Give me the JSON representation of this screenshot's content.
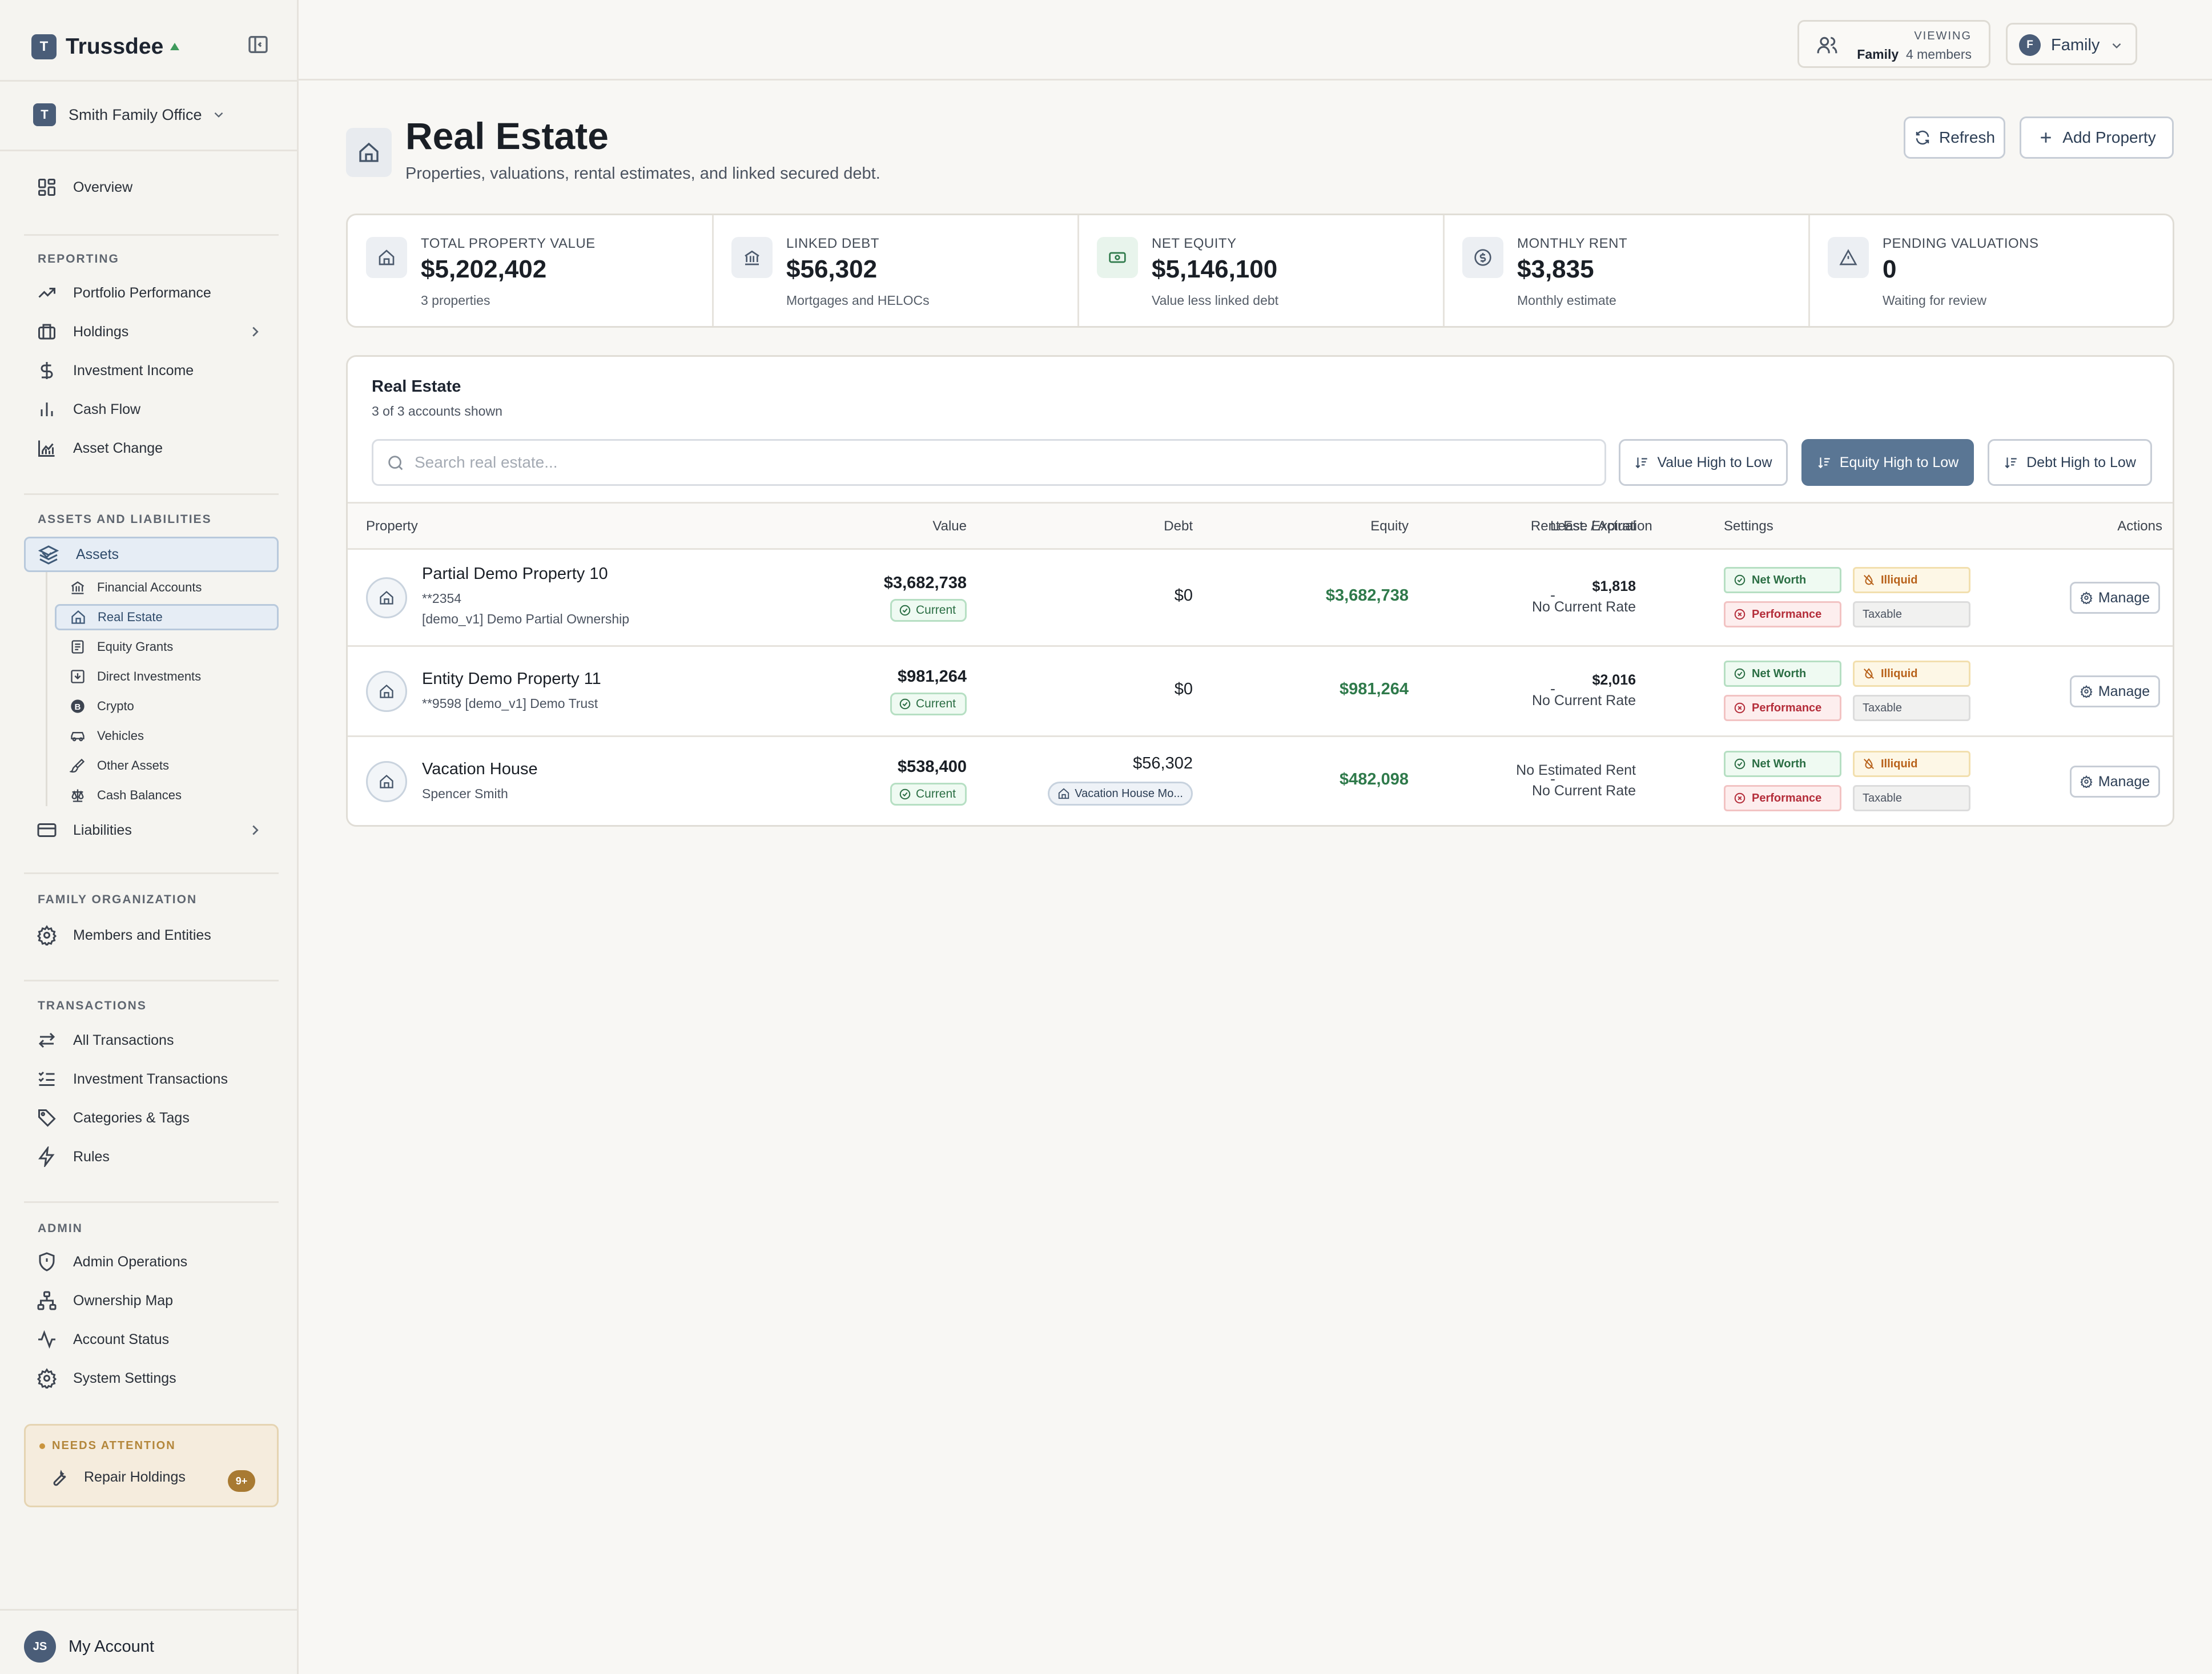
{
  "app": {
    "brand": "Trussdee",
    "brand_initial": "T",
    "org": {
      "initial": "T",
      "name": "Smith Family Office"
    }
  },
  "sidebar": {
    "overview": "Overview",
    "reporting_label": "REPORTING",
    "reporting": [
      "Portfolio Performance",
      "Holdings",
      "Investment Income",
      "Cash Flow",
      "Asset Change"
    ],
    "al_label": "ASSETS AND LIABILITIES",
    "assets": "Assets",
    "asset_subs": [
      "Financial Accounts",
      "Real Estate",
      "Equity Grants",
      "Direct Investments",
      "Crypto",
      "Vehicles",
      "Other Assets",
      "Cash Balances"
    ],
    "liabilities": "Liabilities",
    "family_label": "FAMILY ORGANIZATION",
    "family": [
      "Members and Entities"
    ],
    "tx_label": "TRANSACTIONS",
    "transactions": [
      "All Transactions",
      "Investment Transactions",
      "Categories & Tags",
      "Rules"
    ],
    "admin_label": "ADMIN",
    "admin": [
      "Admin Operations",
      "Ownership Map",
      "Account Status",
      "System Settings"
    ],
    "attention": {
      "label": "NEEDS ATTENTION",
      "item": "Repair Holdings",
      "badge": "9+"
    },
    "account": {
      "initials": "JS",
      "name": "My Account"
    }
  },
  "topbar": {
    "viewing_label": "VIEWING",
    "viewing_name": "Family",
    "viewing_members": "4 members",
    "selector_initial": "F",
    "selector_label": "Family"
  },
  "page": {
    "title": "Real Estate",
    "subtitle": "Properties, valuations, rental estimates, and linked secured debt.",
    "refresh": "Refresh",
    "add": "Add Property"
  },
  "stats": [
    {
      "label": "TOTAL PROPERTY VALUE",
      "value": "$5,202,402",
      "sub": "3 properties",
      "icon": "home-icon"
    },
    {
      "label": "LINKED DEBT",
      "value": "$56,302",
      "sub": "Mortgages and HELOCs",
      "icon": "bank-icon"
    },
    {
      "label": "NET EQUITY",
      "value": "$5,146,100",
      "sub": "Value less linked debt",
      "icon": "banknote-icon"
    },
    {
      "label": "MONTHLY RENT",
      "value": "$3,835",
      "sub": "Monthly estimate",
      "icon": "dollar-circle-icon"
    },
    {
      "label": "PENDING VALUATIONS",
      "value": "0",
      "sub": "Waiting for review",
      "icon": "alert-triangle-icon"
    }
  ],
  "table": {
    "title": "Real Estate",
    "subtitle": "3 of 3 accounts shown",
    "search_placeholder": "Search real estate...",
    "sorts": [
      "Value High to Low",
      "Equity High to Low",
      "Debt High to Low"
    ],
    "active_sort": "Equity High to Low",
    "columns": [
      "Property",
      "Value",
      "Debt",
      "Equity",
      "Rent Est. / Actual",
      "Lease Expiration",
      "Settings",
      "Actions"
    ],
    "tags": {
      "net_worth": "Net Worth",
      "illiquid": "Illiquid",
      "performance": "Performance",
      "taxable": "Taxable"
    },
    "manage": "Manage",
    "current": "Current",
    "rows": [
      {
        "name": "Partial Demo Property 10",
        "mask": "**2354",
        "meta2": "[demo_v1] Demo Partial Ownership",
        "value": "$3,682,738",
        "debt": "$0",
        "equity": "$3,682,738",
        "rent1": "$1,818",
        "rent2": "No Current Rate",
        "lease": "-"
      },
      {
        "name": "Entity Demo Property 11",
        "meta": "**9598  [demo_v1] Demo Trust",
        "value": "$981,264",
        "debt": "$0",
        "equity": "$981,264",
        "rent1": "$2,016",
        "rent2": "No Current Rate",
        "lease": "-"
      },
      {
        "name": "Vacation House",
        "meta": "Spencer Smith",
        "value": "$538,400",
        "debt": "$56,302",
        "debt_pill": "Vacation House Mo...",
        "equity": "$482,098",
        "rent1": "No Estimated Rent",
        "rent2": "No Current Rate",
        "lease": "-"
      }
    ]
  },
  "colors": {
    "accent": "#5a7694",
    "positive": "#2f7a4b",
    "warning": "#b8621b",
    "danger": "#b42d3a"
  }
}
